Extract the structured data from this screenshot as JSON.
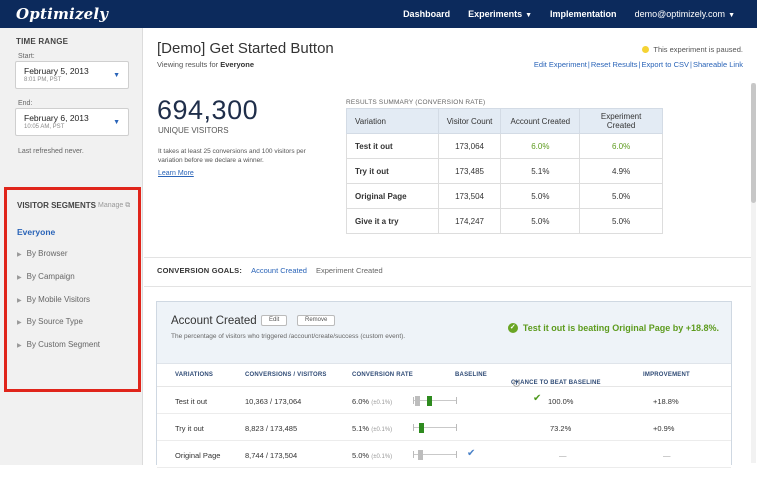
{
  "app": {
    "brand": "Optimizely",
    "nav": {
      "dashboard": "Dashboard",
      "experiments": "Experiments",
      "implementation": "Implementation",
      "account": "demo@optimizely.com"
    }
  },
  "sidebar": {
    "time_range_title": "TIME RANGE",
    "start_label": "Start:",
    "start_date": "February 5, 2013",
    "start_time": "8:01 PM, PST",
    "end_label": "End:",
    "end_date": "February 6, 2013",
    "end_time": "10:05 AM, PST",
    "refresh_note": "Last refreshed never.",
    "segments_title": "VISITOR SEGMENTS",
    "manage_label": "Manage",
    "selected_segment": "Everyone",
    "segments": [
      "By Browser",
      "By Campaign",
      "By Mobile Visitors",
      "By Source Type",
      "By Custom Segment"
    ]
  },
  "experiment": {
    "title": "[Demo] Get Started Button",
    "viewing_prefix": "Viewing results for",
    "viewing_segment": "Everyone",
    "status_text": "This experiment is paused.",
    "links": [
      "Edit Experiment",
      "Reset Results",
      "Export to CSV",
      "Shareable Link"
    ]
  },
  "overview": {
    "unique_visitors": "694,300",
    "unique_visitors_label": "UNIQUE VISITORS",
    "note": "It takes at least 25 conversions and 100 visitors per variation before we declare a winner.",
    "learn_more": "Learn More"
  },
  "summary": {
    "title": "RESULTS SUMMARY (CONVERSION RATE)",
    "columns": [
      "Variation",
      "Visitor Count",
      "Account Created",
      "Experiment Created"
    ],
    "rows": [
      {
        "variation": "Test it out",
        "visitors": "173,064",
        "account": "6.0%",
        "experiment": "6.0%"
      },
      {
        "variation": "Try it out",
        "visitors": "173,485",
        "account": "5.1%",
        "experiment": "4.9%"
      },
      {
        "variation": "Original Page",
        "visitors": "173,504",
        "account": "5.0%",
        "experiment": "5.0%"
      },
      {
        "variation": "Give it a try",
        "visitors": "174,247",
        "account": "5.0%",
        "experiment": "5.0%"
      }
    ]
  },
  "goals": {
    "label": "CONVERSION GOALS:",
    "tabs": [
      "Account Created",
      "Experiment Created"
    ]
  },
  "goal_panel": {
    "title": "Account Created",
    "edit_label": "Edit",
    "remove_label": "Remove",
    "description": "The percentage of visitors who triggered /account/create/success (custom event).",
    "winner_text": "Test it out is beating Original Page by +18.8%.",
    "columns": [
      "VARIATIONS",
      "CONVERSIONS / VISITORS",
      "CONVERSION RATE",
      "BASELINE",
      "CHANCE TO BEAT BASELINE",
      "IMPROVEMENT"
    ],
    "rows": [
      {
        "variation": "Test it out",
        "conversions": "10,363 / 173,064",
        "rate": "6.0%",
        "rate_margin": "(±0.1%)",
        "chance": "100.0%",
        "improvement": "+18.8%",
        "winner": true,
        "baseline": false,
        "bar_position": 0.35
      },
      {
        "variation": "Try it out",
        "conversions": "8,823 / 173,485",
        "rate": "5.1%",
        "rate_margin": "(±0.1%)",
        "chance": "73.2%",
        "improvement": "+0.9%",
        "winner": false,
        "baseline": false,
        "bar_position": 0.15
      },
      {
        "variation": "Original Page",
        "conversions": "8,744 / 173,504",
        "rate": "5.0%",
        "rate_margin": "(±0.1%)",
        "chance": "—",
        "improvement": "—",
        "winner": false,
        "baseline": true,
        "bar_position": 0.12
      }
    ]
  },
  "colors": {
    "nav_bg": "#0c2a5c",
    "accent_blue": "#2a64b8",
    "success_green": "#5d9b1e",
    "highlight_red": "#e0251b",
    "paused_yellow": "#f5d334"
  }
}
